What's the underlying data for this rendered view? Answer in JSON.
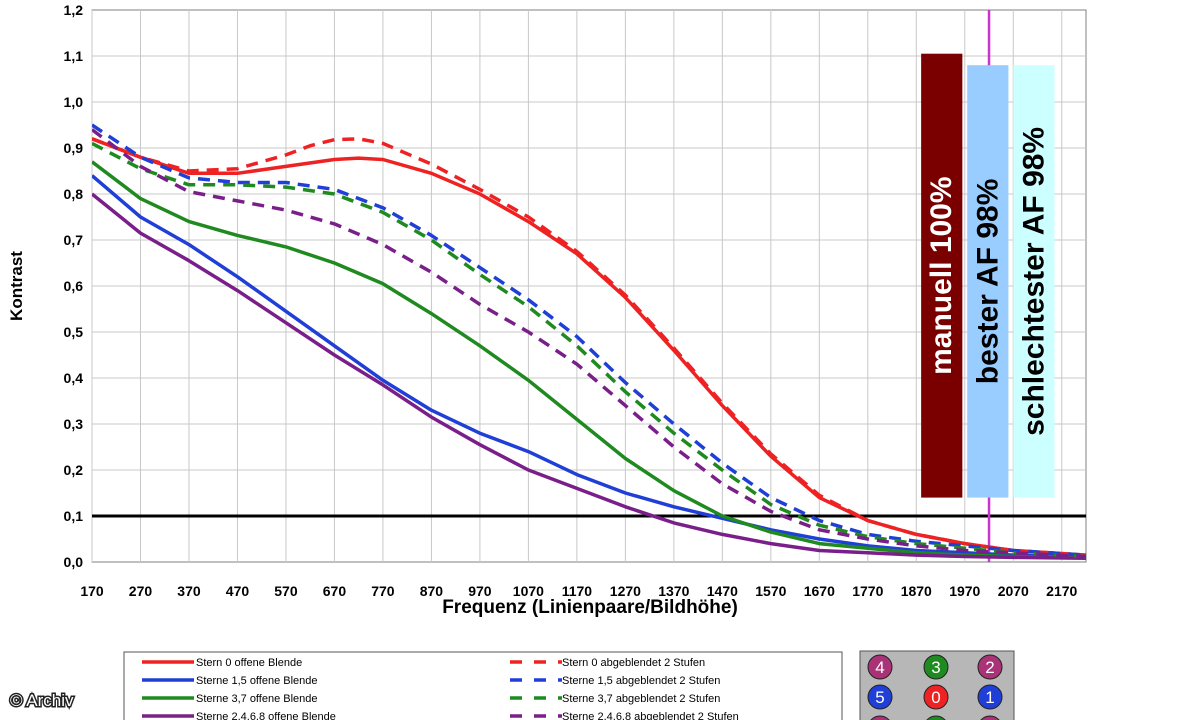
{
  "chart_data": {
    "type": "line",
    "title": "",
    "xlabel": "Frequenz (Linienpaare/Bildhöhe)",
    "ylabel": "Kontrast",
    "xlim": [
      170,
      2220
    ],
    "ylim": [
      0,
      1.2
    ],
    "x_ticks": [
      "170",
      "270",
      "370",
      "470",
      "570",
      "670",
      "770",
      "870",
      "970",
      "1070",
      "1170",
      "1270",
      "1370",
      "1470",
      "1570",
      "1670",
      "1770",
      "1870",
      "1970",
      "2070",
      "2170"
    ],
    "y_ticks": [
      "0,0",
      "0,1",
      "0,2",
      "0,3",
      "0,4",
      "0,5",
      "0,6",
      "0,7",
      "0,8",
      "0,9",
      "1,0",
      "1,1",
      "1,2"
    ],
    "grid": true,
    "reference_line": {
      "y": 0.1,
      "color": "#000000"
    },
    "marker_line": {
      "x": 2020,
      "color": "#cc33cc"
    },
    "series": [
      {
        "name": "Stern 0 offene Blende",
        "color": "#ee2222",
        "dash": false,
        "x": [
          170,
          270,
          370,
          470,
          570,
          670,
          720,
          770,
          870,
          970,
          1070,
          1170,
          1270,
          1370,
          1470,
          1570,
          1670,
          1770,
          1870,
          1970,
          2070,
          2220
        ],
        "y": [
          0.92,
          0.88,
          0.845,
          0.845,
          0.86,
          0.875,
          0.878,
          0.875,
          0.845,
          0.8,
          0.74,
          0.67,
          0.575,
          0.46,
          0.34,
          0.23,
          0.14,
          0.09,
          0.06,
          0.04,
          0.025,
          0.015
        ]
      },
      {
        "name": "Sterne 1,5 offene Blende",
        "color": "#1f3fd6",
        "dash": false,
        "x": [
          170,
          270,
          370,
          470,
          570,
          670,
          770,
          870,
          970,
          1070,
          1170,
          1270,
          1370,
          1470,
          1570,
          1670,
          1770,
          1870,
          1970,
          2070,
          2220
        ],
        "y": [
          0.84,
          0.75,
          0.69,
          0.62,
          0.545,
          0.47,
          0.395,
          0.33,
          0.28,
          0.24,
          0.19,
          0.15,
          0.12,
          0.095,
          0.07,
          0.05,
          0.035,
          0.025,
          0.02,
          0.015,
          0.01
        ]
      },
      {
        "name": "Sterne 3,7 offene Blende",
        "color": "#1f8a1f",
        "dash": false,
        "x": [
          170,
          270,
          370,
          470,
          570,
          670,
          770,
          870,
          970,
          1070,
          1170,
          1270,
          1370,
          1470,
          1570,
          1670,
          1770,
          1870,
          1970,
          2070,
          2220
        ],
        "y": [
          0.87,
          0.79,
          0.74,
          0.71,
          0.685,
          0.65,
          0.605,
          0.54,
          0.47,
          0.395,
          0.31,
          0.225,
          0.155,
          0.1,
          0.065,
          0.04,
          0.03,
          0.02,
          0.015,
          0.012,
          0.01
        ]
      },
      {
        "name": "Sterne 2,4,6,8 offene Blende",
        "color": "#7a1f8a",
        "dash": false,
        "x": [
          170,
          270,
          370,
          470,
          570,
          670,
          770,
          870,
          970,
          1070,
          1170,
          1270,
          1370,
          1470,
          1570,
          1670,
          1770,
          1870,
          1970,
          2070,
          2220
        ],
        "y": [
          0.8,
          0.715,
          0.655,
          0.59,
          0.52,
          0.45,
          0.385,
          0.315,
          0.255,
          0.2,
          0.16,
          0.12,
          0.085,
          0.06,
          0.04,
          0.025,
          0.02,
          0.015,
          0.012,
          0.01,
          0.008
        ]
      },
      {
        "name": "Stern 0 abgeblendet 2 Stufen",
        "color": "#ee2222",
        "dash": true,
        "x": [
          170,
          270,
          370,
          470,
          570,
          620,
          670,
          720,
          770,
          870,
          970,
          1070,
          1170,
          1270,
          1370,
          1470,
          1570,
          1670,
          1770,
          1870,
          1970,
          2070,
          2220
        ],
        "y": [
          0.92,
          0.88,
          0.85,
          0.855,
          0.885,
          0.905,
          0.918,
          0.92,
          0.91,
          0.865,
          0.81,
          0.75,
          0.675,
          0.58,
          0.465,
          0.345,
          0.235,
          0.145,
          0.09,
          0.06,
          0.04,
          0.025,
          0.015
        ]
      },
      {
        "name": "Sterne 1,5 abgeblendet 2 Stufen",
        "color": "#1f3fd6",
        "dash": true,
        "x": [
          170,
          270,
          370,
          470,
          570,
          670,
          770,
          870,
          970,
          1070,
          1170,
          1270,
          1370,
          1470,
          1570,
          1670,
          1770,
          1870,
          1970,
          2070,
          2220
        ],
        "y": [
          0.95,
          0.88,
          0.835,
          0.825,
          0.825,
          0.81,
          0.77,
          0.71,
          0.64,
          0.57,
          0.49,
          0.39,
          0.3,
          0.215,
          0.14,
          0.09,
          0.06,
          0.045,
          0.035,
          0.025,
          0.015
        ]
      },
      {
        "name": "Sterne 3,7 abgeblendet 2 Stufen",
        "color": "#1f8a1f",
        "dash": true,
        "x": [
          170,
          270,
          370,
          470,
          570,
          670,
          770,
          870,
          970,
          1070,
          1170,
          1270,
          1370,
          1470,
          1570,
          1670,
          1770,
          1870,
          1970,
          2070,
          2220
        ],
        "y": [
          0.91,
          0.855,
          0.82,
          0.82,
          0.815,
          0.8,
          0.76,
          0.7,
          0.625,
          0.555,
          0.47,
          0.37,
          0.28,
          0.2,
          0.125,
          0.08,
          0.055,
          0.04,
          0.03,
          0.02,
          0.012
        ]
      },
      {
        "name": "Sterne 2,4,6,8 abgeblendet 2 Stufen",
        "color": "#7a1f8a",
        "dash": true,
        "x": [
          170,
          270,
          370,
          470,
          570,
          670,
          770,
          870,
          970,
          1070,
          1170,
          1270,
          1370,
          1470,
          1570,
          1670,
          1770,
          1870,
          1970,
          2070,
          2220
        ],
        "y": [
          0.94,
          0.86,
          0.805,
          0.785,
          0.765,
          0.735,
          0.69,
          0.63,
          0.56,
          0.5,
          0.43,
          0.34,
          0.25,
          0.17,
          0.11,
          0.07,
          0.05,
          0.035,
          0.025,
          0.02,
          0.012
        ]
      }
    ],
    "annotations": [
      {
        "text": "manuell 100%",
        "color": "#7a0000",
        "text_color": "#ffffff",
        "x_from": 1880,
        "x_to": 1965,
        "y_from": 0.14,
        "y_to": 1.105
      },
      {
        "text": "bester AF 98%",
        "color": "#99ccff",
        "text_color": "#000000",
        "x_from": 1975,
        "x_to": 2060,
        "y_from": 0.14,
        "y_to": 1.08
      },
      {
        "text": "schlechtester AF 98%",
        "color": "#ccffff",
        "text_color": "#000000",
        "x_from": 2070,
        "x_to": 2155,
        "y_from": 0.14,
        "y_to": 1.08
      }
    ]
  },
  "star_grid": {
    "row1": [
      {
        "label": "4",
        "color": "#aa3377"
      },
      {
        "label": "3",
        "color": "#1f8a1f"
      },
      {
        "label": "2",
        "color": "#aa3377"
      }
    ],
    "row2": [
      {
        "label": "5",
        "color": "#1f3fd6"
      },
      {
        "label": "0",
        "color": "#ee2222"
      },
      {
        "label": "1",
        "color": "#1f3fd6"
      }
    ],
    "row3": [
      {
        "label": "",
        "color": "#aa3377"
      },
      {
        "label": "",
        "color": "#1f8a1f"
      },
      {
        "label": "",
        "color": "#aa3377"
      }
    ]
  },
  "watermark": "© Archiv"
}
